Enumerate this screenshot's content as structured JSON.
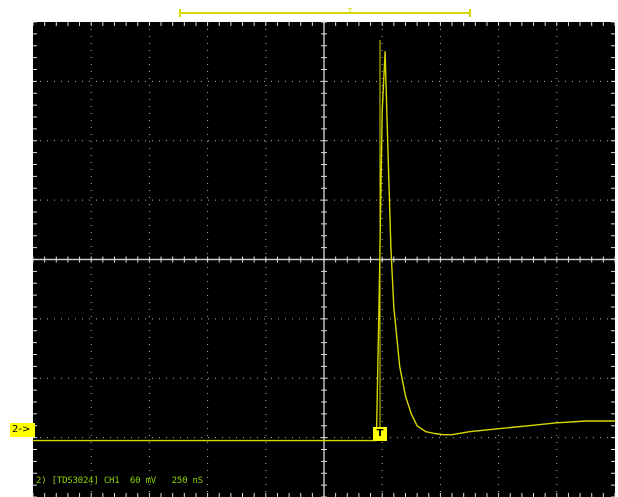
{
  "colors": {
    "background": "#000000",
    "grid": "#e0e0e0",
    "trace": "#d8d800",
    "marker": "#ffff00",
    "status_text": "#8fd400"
  },
  "markers": {
    "channel": "2->",
    "trigger": "T",
    "trigger_top": "T"
  },
  "status_line": "2) [TDS3024] CH1  60 mV   250 nS",
  "icons": [
    "channel-marker",
    "trigger-marker",
    "record-window-bracket"
  ],
  "chart_data": {
    "type": "line",
    "title": "",
    "xlabel": "",
    "ylabel": "",
    "grid": true,
    "divisions": {
      "x": 10,
      "y": 8
    },
    "xlim": [
      0,
      10
    ],
    "ylim": [
      -4,
      4
    ],
    "x_unit_per_div": "250 nS",
    "y_unit_per_div": "60 mV",
    "trigger_position_div": 5.9,
    "series": [
      {
        "name": "",
        "x": [
          0,
          1,
          2,
          3,
          4,
          5,
          5.7,
          5.9,
          5.95,
          6.0,
          6.05,
          6.1,
          6.15,
          6.2,
          6.3,
          6.4,
          6.5,
          6.6,
          6.75,
          6.9,
          7.05,
          7.2,
          7.5,
          8,
          8.5,
          9,
          9.5,
          10
        ],
        "y": [
          -3.05,
          -3.05,
          -3.05,
          -3.05,
          -3.05,
          -3.05,
          -3.05,
          -3.05,
          -0.5,
          2.5,
          3.5,
          1.8,
          0.2,
          -0.8,
          -1.8,
          -2.3,
          -2.6,
          -2.8,
          -2.9,
          -2.93,
          -2.95,
          -2.95,
          -2.9,
          -2.85,
          -2.8,
          -2.75,
          -2.72,
          -2.72
        ]
      }
    ]
  }
}
